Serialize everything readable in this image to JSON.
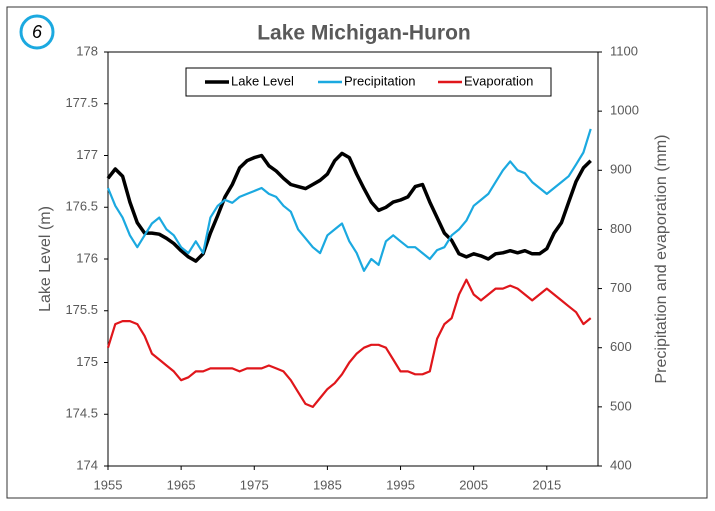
{
  "chart_data": {
    "type": "line",
    "title": "Lake Michigan-Huron",
    "panel_label": "6",
    "y_label": "Lake Level (m)",
    "y2_label": "Precipitation and evaporation (mm)",
    "x": [
      1955,
      1956,
      1957,
      1958,
      1959,
      1960,
      1961,
      1962,
      1963,
      1964,
      1965,
      1966,
      1967,
      1968,
      1969,
      1970,
      1971,
      1972,
      1973,
      1974,
      1975,
      1976,
      1977,
      1978,
      1979,
      1980,
      1981,
      1982,
      1983,
      1984,
      1985,
      1986,
      1987,
      1988,
      1989,
      1990,
      1991,
      1992,
      1993,
      1994,
      1995,
      1996,
      1997,
      1998,
      1999,
      2000,
      2001,
      2002,
      2003,
      2004,
      2005,
      2006,
      2007,
      2008,
      2009,
      2010,
      2011,
      2012,
      2013,
      2014,
      2015,
      2016,
      2017,
      2018,
      2019,
      2020,
      2021
    ],
    "series": [
      {
        "name": "Lake Level",
        "color": "#000000",
        "axis": "y",
        "values": [
          176.78,
          176.87,
          176.8,
          176.55,
          176.35,
          176.25,
          176.25,
          176.24,
          176.2,
          176.15,
          176.08,
          176.02,
          175.98,
          176.05,
          176.25,
          176.42,
          176.6,
          176.72,
          176.88,
          176.95,
          176.98,
          177.0,
          176.9,
          176.85,
          176.78,
          176.72,
          176.7,
          176.68,
          176.72,
          176.76,
          176.82,
          176.95,
          177.02,
          176.98,
          176.82,
          176.68,
          176.55,
          176.47,
          176.5,
          176.55,
          176.57,
          176.6,
          176.7,
          176.72,
          176.55,
          176.4,
          176.25,
          176.18,
          176.05,
          176.02,
          176.05,
          176.03,
          176.0,
          176.05,
          176.06,
          176.08,
          176.06,
          176.08,
          176.05,
          176.05,
          176.1,
          176.25,
          176.35,
          176.55,
          176.75,
          176.88,
          176.95
        ]
      },
      {
        "name": "Precipitation",
        "color": "#1ba9e0",
        "axis": "y2",
        "values": [
          870,
          840,
          820,
          790,
          770,
          790,
          810,
          820,
          800,
          790,
          770,
          760,
          780,
          760,
          820,
          840,
          850,
          845,
          855,
          860,
          865,
          870,
          860,
          855,
          840,
          830,
          800,
          785,
          770,
          760,
          790,
          800,
          810,
          780,
          760,
          730,
          750,
          740,
          780,
          790,
          780,
          770,
          770,
          760,
          750,
          765,
          770,
          790,
          800,
          815,
          840,
          850,
          860,
          880,
          900,
          915,
          900,
          895,
          880,
          870,
          860,
          870,
          880,
          890,
          910,
          930,
          970
        ]
      },
      {
        "name": "Evaporation",
        "color": "#e0161b",
        "axis": "y2",
        "values": [
          600,
          640,
          645,
          645,
          640,
          620,
          590,
          580,
          570,
          560,
          545,
          550,
          560,
          560,
          565,
          565,
          565,
          565,
          560,
          565,
          565,
          565,
          570,
          565,
          560,
          545,
          525,
          505,
          500,
          515,
          530,
          540,
          555,
          575,
          590,
          600,
          605,
          605,
          600,
          580,
          560,
          560,
          555,
          555,
          560,
          615,
          640,
          650,
          690,
          715,
          690,
          680,
          690,
          700,
          700,
          705,
          700,
          690,
          680,
          690,
          700,
          690,
          680,
          670,
          660,
          640,
          650
        ]
      }
    ],
    "xlim": [
      1955,
      2022
    ],
    "xticks": [
      1955,
      1965,
      1975,
      1985,
      1995,
      2005,
      2015
    ],
    "ylim": [
      174,
      178
    ],
    "yticks": [
      174,
      174.5,
      175,
      175.5,
      176,
      176.5,
      177,
      177.5,
      178
    ],
    "y2lim": [
      400,
      1100
    ],
    "y2ticks": [
      400,
      500,
      600,
      700,
      800,
      900,
      1000,
      1100
    ],
    "legend": "top",
    "grid": false
  }
}
